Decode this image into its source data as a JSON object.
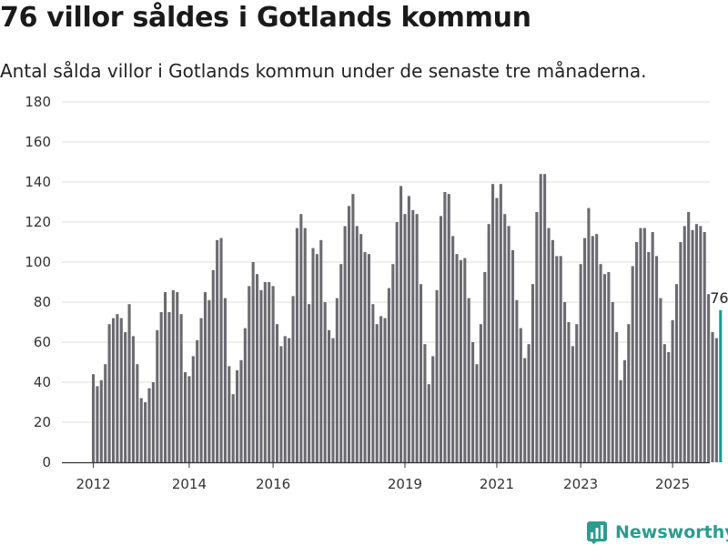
{
  "title": "76 villor såldes i Gotlands kommun",
  "subtitle": "Antal sålda villor i Gotlands kommun under de senaste tre månaderna.",
  "brand": "Newsworthy",
  "colors": {
    "bar": "#6b6a70",
    "highlight": "#1a9b8c",
    "grid": "#dddddd",
    "axis": "#333333",
    "brand": "#2a9d8f"
  },
  "chart_data": {
    "type": "bar",
    "title": "76 villor såldes i Gotlands kommun",
    "subtitle": "Antal sålda villor i Gotlands kommun under de senaste tre månaderna.",
    "xlabel": "",
    "ylabel": "",
    "ylim": [
      0,
      180
    ],
    "yticks": [
      0,
      20,
      40,
      60,
      80,
      100,
      120,
      140,
      160,
      180
    ],
    "xtick_labels": [
      "2012",
      "2014",
      "2016",
      "2019",
      "2021",
      "2023",
      "2025"
    ],
    "grid": "horizontal",
    "highlight_label": "76",
    "series": [
      {
        "values": [
          44,
          38,
          41,
          49,
          69,
          72,
          74,
          72,
          65,
          79,
          63,
          49,
          32,
          30,
          37,
          40,
          66,
          75,
          85,
          75,
          86,
          85,
          74,
          45,
          43,
          53,
          61,
          72,
          85,
          81,
          96,
          111,
          112,
          82,
          48,
          34,
          46,
          51,
          67,
          88,
          100,
          94,
          86,
          90,
          90,
          88,
          69,
          58,
          63,
          62,
          83,
          117,
          124,
          117,
          79,
          107,
          104,
          111,
          80,
          66,
          62,
          82,
          99,
          118,
          128,
          134,
          118,
          114,
          105,
          104,
          79,
          69,
          73,
          72,
          87,
          99,
          120,
          138,
          124,
          133,
          126,
          124,
          89,
          59,
          39,
          53,
          86,
          123,
          135,
          134,
          113,
          104,
          101,
          102,
          82,
          60,
          49,
          69,
          95,
          119,
          139,
          132,
          139,
          124,
          118,
          106,
          81,
          67,
          52,
          59,
          89,
          125,
          144,
          144,
          117,
          111,
          103,
          103,
          80,
          70,
          58,
          69,
          99,
          112,
          127,
          113,
          114,
          99,
          94,
          95,
          80,
          65,
          41,
          51,
          69,
          98,
          110,
          117,
          117,
          105,
          115,
          103,
          82,
          59,
          55,
          71,
          89,
          110,
          118,
          125,
          116,
          119,
          118,
          115,
          84,
          65,
          62,
          76
        ]
      }
    ]
  }
}
